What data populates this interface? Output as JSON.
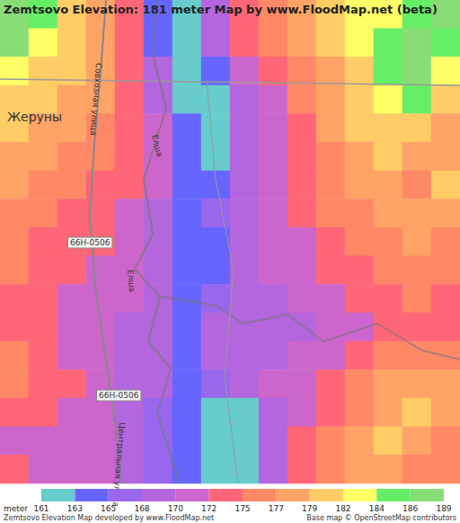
{
  "chart_data": {
    "type": "heatmap",
    "title": "Zemtsovo Elevation: 181 meter Map by www.FloodMap.net (beta)",
    "footer": "Zemtsovo Elevation Map developed by www.FloodMap.net",
    "credit": "Base map © OpenStreetMap contributors",
    "annotations": [
      "Совхозная улица",
      "Жеруны",
      "Елша",
      "66Н-0506",
      "Елша",
      "66Н-0506",
      "Центральная улица"
    ],
    "tick_labels": false,
    "grid": false,
    "colorbar": {
      "label": "meter",
      "range": [
        161,
        189
      ],
      "ticks": [
        161,
        163,
        165,
        168,
        170,
        172,
        175,
        177,
        179,
        182,
        184,
        186,
        189
      ],
      "colors": [
        "#66cccc",
        "#6666ff",
        "#9966ee",
        "#b366dd",
        "#cc66cc",
        "#ff6677",
        "#ff8866",
        "#ffa366",
        "#ffcc66",
        "#ffff66",
        "#66ee66",
        "#88dd77"
      ]
    },
    "cells": [
      [
        186,
        184,
        179,
        177,
        172,
        164,
        162,
        168,
        172,
        175,
        177,
        179,
        182,
        182,
        184,
        186
      ],
      [
        186,
        182,
        179,
        177,
        172,
        164,
        162,
        168,
        172,
        175,
        177,
        179,
        182,
        184,
        186,
        184
      ],
      [
        182,
        181,
        179,
        177,
        172,
        168,
        162,
        164,
        170,
        172,
        175,
        177,
        179,
        184,
        186,
        182
      ],
      [
        179,
        179,
        177,
        177,
        172,
        168,
        162,
        162,
        168,
        170,
        175,
        177,
        179,
        182,
        184,
        179
      ],
      [
        179,
        177,
        177,
        175,
        172,
        170,
        164,
        162,
        168,
        170,
        172,
        177,
        179,
        181,
        179,
        177
      ],
      [
        177,
        177,
        175,
        175,
        172,
        170,
        164,
        162,
        168,
        170,
        172,
        175,
        177,
        179,
        177,
        177
      ],
      [
        177,
        175,
        175,
        172,
        172,
        170,
        164,
        164,
        168,
        170,
        172,
        175,
        177,
        177,
        175,
        179
      ],
      [
        175,
        175,
        172,
        172,
        170,
        168,
        164,
        166,
        168,
        170,
        172,
        175,
        175,
        177,
        177,
        177
      ],
      [
        175,
        172,
        172,
        172,
        170,
        168,
        164,
        164,
        168,
        170,
        170,
        172,
        175,
        175,
        177,
        175
      ],
      [
        175,
        172,
        172,
        170,
        170,
        168,
        164,
        164,
        168,
        170,
        170,
        172,
        172,
        175,
        175,
        175
      ],
      [
        172,
        172,
        170,
        170,
        170,
        168,
        164,
        166,
        168,
        168,
        170,
        170,
        172,
        172,
        175,
        172
      ],
      [
        172,
        172,
        170,
        170,
        168,
        168,
        164,
        168,
        168,
        168,
        168,
        170,
        170,
        172,
        172,
        172
      ],
      [
        175,
        172,
        170,
        170,
        168,
        168,
        164,
        168,
        168,
        168,
        170,
        170,
        172,
        175,
        175,
        175
      ],
      [
        175,
        172,
        172,
        170,
        168,
        168,
        164,
        166,
        168,
        170,
        170,
        172,
        175,
        177,
        177,
        177
      ],
      [
        172,
        172,
        170,
        170,
        168,
        166,
        164,
        162,
        162,
        168,
        170,
        172,
        175,
        177,
        179,
        177
      ],
      [
        170,
        170,
        170,
        170,
        168,
        166,
        164,
        162,
        162,
        168,
        172,
        175,
        177,
        179,
        177,
        175
      ],
      [
        172,
        170,
        170,
        170,
        168,
        166,
        164,
        162,
        162,
        168,
        172,
        175,
        177,
        177,
        175,
        175
      ]
    ]
  }
}
